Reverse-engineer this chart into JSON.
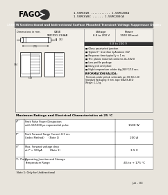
{
  "bg_color": "#e8e4dc",
  "title_bar_color": "#666666",
  "title_text": "1500 W Unidirectional and bidirectional Surface Mounted Transient Voltage Suppressor Diodes",
  "title_text_color": "#ffffff",
  "logo_text": "FAGOR",
  "part_line1": "1.5SMC6V8 ........... 1.5SMC200A",
  "part_line2": "1.5SMC6V8C ...... 1.5SMC200CA",
  "case_label": "CASE\nSMC/DO-214AB",
  "voltage_header": "Voltage",
  "voltage_range": "6.8 to 200 V",
  "power_header": "Power",
  "power_range": "1500 W(max)",
  "highlight_bar_color": "#333333",
  "highlight_text": "6.8 to 200 V",
  "features": [
    "Glass passivated junction",
    "Typical Iᴿᵀ less than 1μA above 10V",
    "Response time typically < 1 ns",
    "The plastic material conforms UL-94V-0",
    "Low profile package",
    "Easy pick and place",
    "High temperature solder tkg 260°C/10 sec."
  ],
  "info_title": "INFORMACIÓN/SALIDA:",
  "info_lines": [
    "Terminals solder plated, solderable per IEC 68-2-20",
    "Standard Packaging: 8 mm. tape (EIA-RS-481)",
    "Weight: 1.12 g."
  ],
  "table_title": "Maximum Ratings and Electrical Characteristics at 25 °C",
  "table_rows": [
    [
      "Pᴿᵀ",
      "Peak Pulse Power Dissipation\nwith 10/1000 μs exponential pulse",
      "1500 W"
    ],
    [
      "Iᴿᵀ",
      "Peak Forward Surge Current 8.3 ms.\n(Jedec Method)      (Note 1)",
      "200 A"
    ],
    [
      "Vᴹ",
      "Max. Forward voltage drop\nat Iᴿ = 100μA          (Note 1)",
      "3.5 V"
    ],
    [
      "Tⱼ, Tⱼstg",
      "Operating Junction and Storage\nTemperature Range",
      "-65 to + 175 °C"
    ]
  ],
  "note_text": "Note 1: Only for Unidirectional",
  "footer_text": "Jun - 03",
  "content_bg": "#f2efe9",
  "table_bg": "#ffffff",
  "border_color": "#999999"
}
